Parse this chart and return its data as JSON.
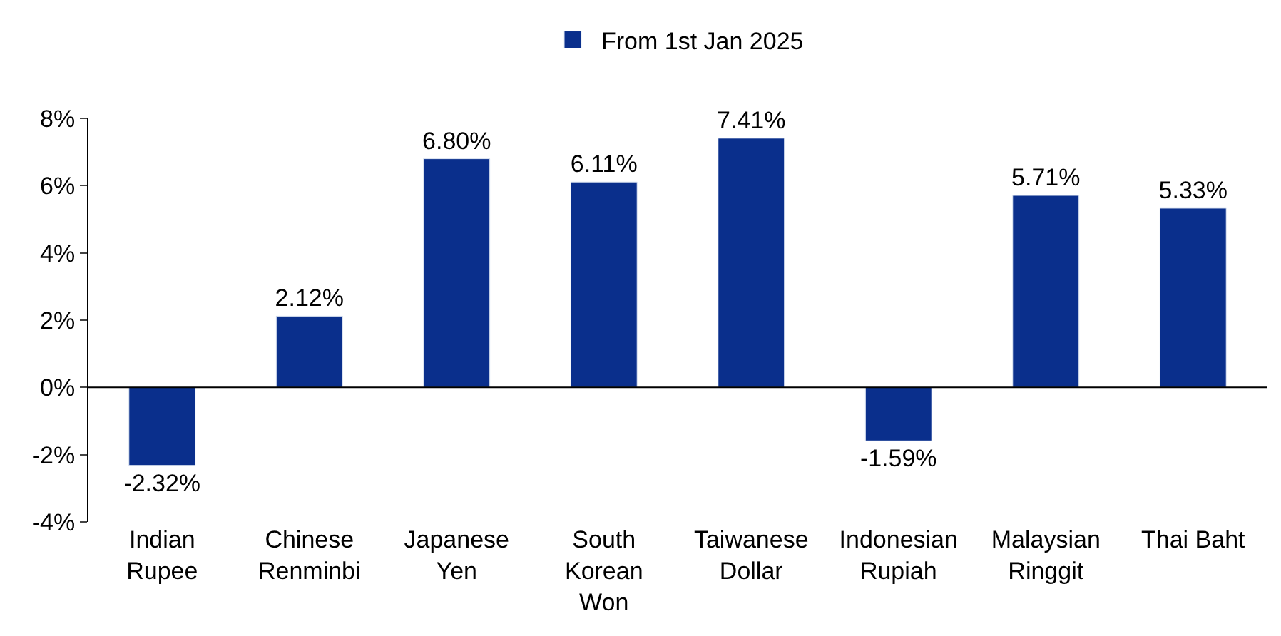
{
  "chart_data": {
    "type": "bar",
    "categories": [
      "Indian\nRupee",
      "Chinese\nRenminbi",
      "Japanese\nYen",
      "South\nKorean\nWon",
      "Taiwanese\nDollar",
      "Indonesian\nRupiah",
      "Malaysian\nRinggit",
      "Thai Baht"
    ],
    "series": [
      {
        "name": "From 1st Jan 2025",
        "color": "#0a2f8c",
        "values": [
          -2.32,
          2.12,
          6.8,
          6.11,
          7.41,
          -1.59,
          5.71,
          5.33
        ],
        "value_labels": [
          "-2.32%",
          "2.12%",
          "6.80%",
          "6.11%",
          "7.41%",
          "-1.59%",
          "5.71%",
          "5.33%"
        ]
      }
    ],
    "ylim": [
      -4,
      8
    ],
    "yticks": [
      {
        "value": -4,
        "label": "-4%"
      },
      {
        "value": -2,
        "label": "-2%"
      },
      {
        "value": 0,
        "label": "0%"
      },
      {
        "value": 2,
        "label": "2%"
      },
      {
        "value": 4,
        "label": "4%"
      },
      {
        "value": 6,
        "label": "6%"
      },
      {
        "value": 8,
        "label": "8%"
      }
    ],
    "ref_lines": [
      {
        "axis": "y",
        "value": 0,
        "color": "#000000"
      }
    ],
    "legend": "top"
  }
}
